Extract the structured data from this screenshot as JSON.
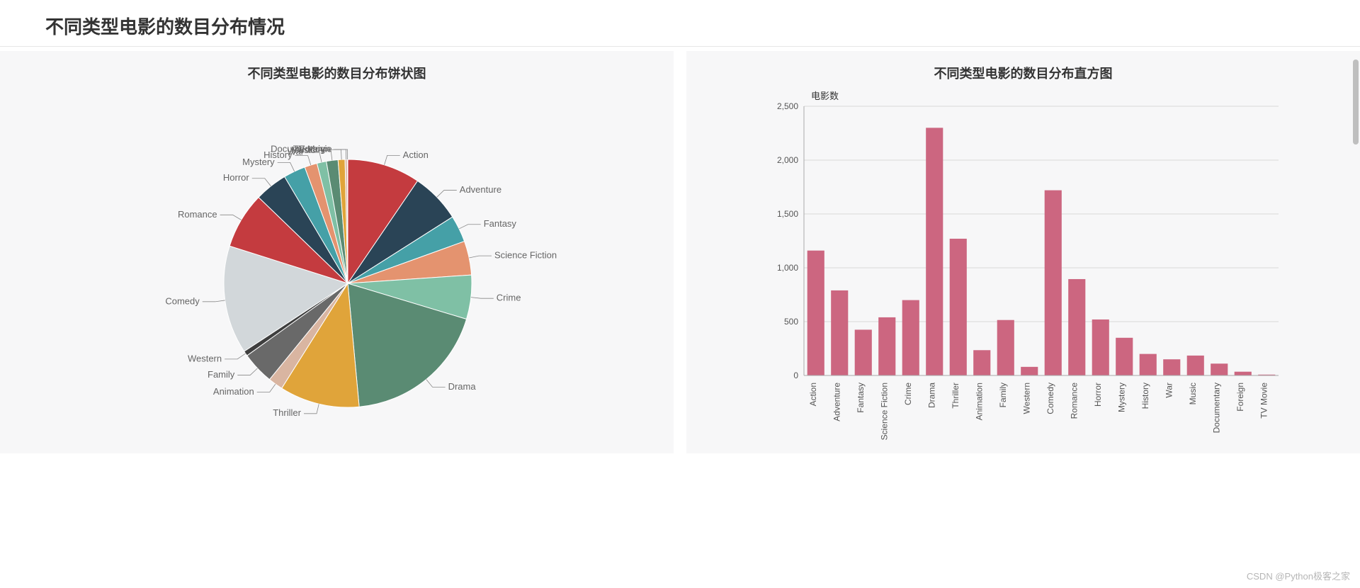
{
  "page": {
    "title": "不同类型电影的数目分布情况",
    "watermark": "CSDN @Python极客之家"
  },
  "pie": {
    "type": "pie",
    "title": "不同类型电影的数目分布饼状图",
    "background_color": "#f7f7f8",
    "edge_color": "#ffffff",
    "label_fontsize": 13,
    "title_fontsize": 18,
    "slices": [
      {
        "label": "Action",
        "value": 1160,
        "color": "#c43b3f",
        "label_color": "#c43b3f"
      },
      {
        "label": "Adventure",
        "value": 790,
        "color": "#2a4456",
        "label_color": "#2a4456"
      },
      {
        "label": "Fantasy",
        "value": 425,
        "color": "#45a0a7",
        "label_color": "#45a0a7"
      },
      {
        "label": "Science Fiction",
        "value": 540,
        "color": "#e4936f",
        "label_color": "#e4936f"
      },
      {
        "label": "Crime",
        "value": 700,
        "color": "#7fc0a5",
        "label_color": "#7fc0a5"
      },
      {
        "label": "Drama",
        "value": 2300,
        "color": "#5a8b73",
        "label_color": "#5a8b73"
      },
      {
        "label": "Thriller",
        "value": 1270,
        "color": "#e0a43a",
        "label_color": "#e0a43a"
      },
      {
        "label": "Animation",
        "value": 235,
        "color": "#d9b5a1",
        "label_color": "#d9b5a1"
      },
      {
        "label": "Family",
        "value": 515,
        "color": "#696969",
        "label_color": "#696969"
      },
      {
        "label": "Western",
        "value": 80,
        "color": "#3e3e3e",
        "label_color": "#3e3e3e"
      },
      {
        "label": "Comedy",
        "value": 1720,
        "color": "#d2d7da",
        "label_color": "#a6a6a6"
      },
      {
        "label": "Romance",
        "value": 895,
        "color": "#c43b3f",
        "label_color": "#c43b3f"
      },
      {
        "label": "Horror",
        "value": 520,
        "color": "#2a4456",
        "label_color": "#2a4456"
      },
      {
        "label": "Mystery",
        "value": 350,
        "color": "#45a0a7",
        "label_color": "#45a0a7"
      },
      {
        "label": "History",
        "value": 200,
        "color": "#e4936f",
        "label_color": "#e4936f"
      },
      {
        "label": "War",
        "value": 150,
        "color": "#7fc0a5",
        "label_color": "#7fc0a5"
      },
      {
        "label": "Music",
        "value": 185,
        "color": "#5a8b73",
        "label_color": "#5a8b73"
      },
      {
        "label": "Documentary",
        "value": 110,
        "color": "#e0a43a",
        "label_color": "#e0a43a"
      },
      {
        "label": "Foreign",
        "value": 35,
        "color": "#d9b5a1",
        "label_color": "#d9b5a1"
      },
      {
        "label": "TV Movie",
        "value": 8,
        "color": "#696969",
        "label_color": "#696969"
      }
    ]
  },
  "bar": {
    "type": "bar",
    "title": "不同类型电影的数目分布直方图",
    "background_color": "#f7f7f8",
    "bar_color": "#cc6680",
    "y_axis_label": "电影数",
    "ylim": [
      0,
      2500
    ],
    "ytick_step": 500,
    "grid_color": "#d9d9d9",
    "axis_color": "#aaaaaa",
    "bar_width": 0.72,
    "label_fontsize": 12,
    "title_fontsize": 18,
    "categories": [
      "Action",
      "Adventure",
      "Fantasy",
      "Science Fiction",
      "Crime",
      "Drama",
      "Thriller",
      "Animation",
      "Family",
      "Western",
      "Comedy",
      "Romance",
      "Horror",
      "Mystery",
      "History",
      "War",
      "Music",
      "Documentary",
      "Foreign",
      "TV Movie"
    ],
    "values": [
      1160,
      790,
      425,
      540,
      700,
      2300,
      1270,
      235,
      515,
      80,
      1720,
      895,
      520,
      350,
      200,
      150,
      185,
      110,
      35,
      8
    ]
  }
}
